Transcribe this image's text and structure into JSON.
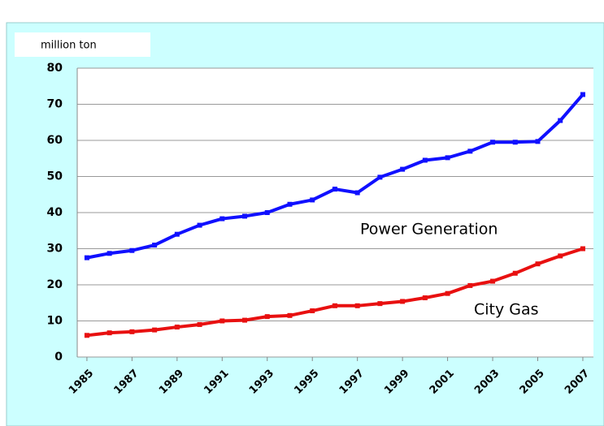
{
  "chart_data": {
    "type": "line",
    "y_label": "million ton",
    "x": [
      1985,
      1986,
      1987,
      1988,
      1989,
      1990,
      1991,
      1992,
      1993,
      1994,
      1995,
      1996,
      1997,
      1998,
      1999,
      2000,
      2001,
      2002,
      2003,
      2004,
      2005,
      2006,
      2007
    ],
    "series": [
      {
        "name": "Power Generation",
        "color": "#1010ff",
        "values": [
          27.5,
          28.7,
          29.5,
          31,
          34,
          36.5,
          38.3,
          39,
          40,
          42.3,
          43.5,
          46.5,
          45.5,
          49.8,
          52,
          54.5,
          55.2,
          57,
          59.5,
          59.5,
          59.7,
          65.5,
          72.7
        ]
      },
      {
        "name": "City Gas",
        "color": "#e81010",
        "values": [
          6,
          6.7,
          7,
          7.5,
          8.3,
          9,
          10,
          10.2,
          11.2,
          11.5,
          12.8,
          14.2,
          14.2,
          14.8,
          15.4,
          16.4,
          17.6,
          19.8,
          21,
          23.2,
          25.8,
          28,
          30
        ]
      }
    ],
    "xlim": [
      1984.57,
      2007.47
    ],
    "xticks": [
      1985,
      1987,
      1989,
      1991,
      1993,
      1995,
      1997,
      1999,
      2001,
      2003,
      2005,
      2007
    ],
    "ylim": [
      0,
      80
    ],
    "yticks": [
      0,
      10,
      20,
      30,
      40,
      50,
      60,
      70,
      80
    ],
    "grid": true
  }
}
